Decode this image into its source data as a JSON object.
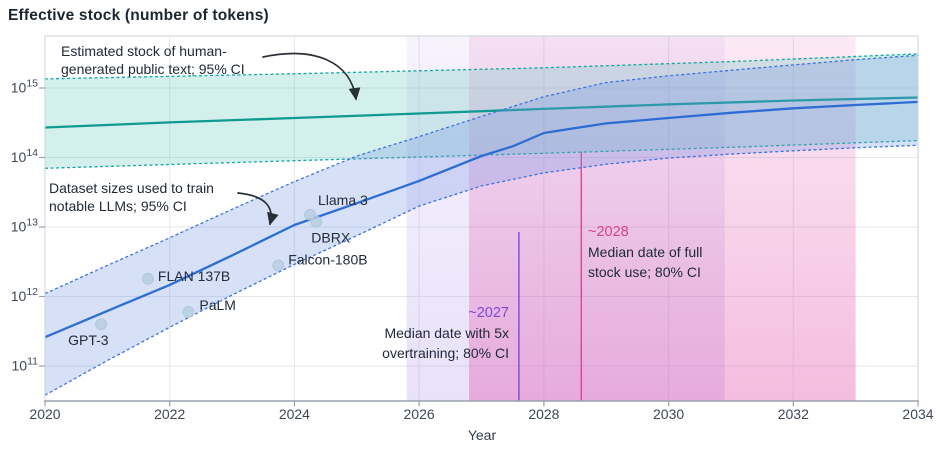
{
  "chart_data": {
    "type": "line",
    "title": "Effective stock (number of tokens)",
    "xlabel": "Year",
    "ylabel": "Effective stock (number of tokens)",
    "xlim": [
      2020,
      2034
    ],
    "ylim_log10": [
      10.5,
      15.75
    ],
    "x_ticks": [
      2020,
      2022,
      2024,
      2026,
      2028,
      2030,
      2032,
      2034
    ],
    "y_tick_exponents": [
      11,
      12,
      13,
      14,
      15
    ],
    "grid": true,
    "legend": "none (annotated inline)",
    "annotations": {
      "human_stock": "Estimated stock of human-\ngenerated public text; 95% CI",
      "dataset_sizes": "Dataset sizes used to train\nnotable LLMs; 95% CI"
    },
    "series": [
      {
        "id": "human_stock",
        "name": "Estimated stock of human-generated public text; 95% CI",
        "color": "#0f9a92",
        "dash_color": "#16a8a0",
        "fill": "rgba(88,196,186,0.26)",
        "median": {
          "x": [
            2020,
            2022,
            2024,
            2026,
            2028,
            2030,
            2032,
            2034
          ],
          "y": [
            270000000000000.0,
            320000000000000.0,
            370000000000000.0,
            430000000000000.0,
            500000000000000.0,
            580000000000000.0,
            660000000000000.0,
            730000000000000.0
          ]
        },
        "upper": {
          "x": [
            2020,
            2024,
            2028,
            2031,
            2034
          ],
          "y": [
            1350000000000000.0,
            1600000000000000.0,
            1950000000000000.0,
            2400000000000000.0,
            3100000000000000.0
          ]
        },
        "lower": {
          "x": [
            2020,
            2024,
            2028,
            2031,
            2034
          ],
          "y": [
            70000000000000.0,
            90000000000000.0,
            115000000000000.0,
            140000000000000.0,
            175000000000000.0
          ]
        }
      },
      {
        "id": "dataset_sizes",
        "name": "Dataset sizes used to train notable LLMs; 95% CI",
        "color": "#2e6ed4",
        "dash_color": "#3d74dc",
        "fill": "rgba(120,152,228,0.30)",
        "median": {
          "x": [
            2020,
            2021,
            2022,
            2023,
            2024,
            2025,
            2026,
            2027,
            2027.5,
            2028,
            2028.5,
            2029,
            2030,
            2031,
            2032,
            2033,
            2034
          ],
          "y": [
            260000000000.0,
            620000000000.0,
            1470000000000.0,
            3900000000000.0,
            10700000000000.0,
            22000000000000.0,
            46000000000000.0,
            105000000000000.0,
            145000000000000.0,
            225000000000000.0,
            265000000000000.0,
            310000000000000.0,
            370000000000000.0,
            440000000000000.0,
            510000000000000.0,
            570000000000000.0,
            630000000000000.0
          ]
        },
        "upper": {
          "x": [
            2020,
            2021,
            2022,
            2023,
            2024,
            2025,
            2026,
            2027,
            2028,
            2029,
            2030,
            2031,
            2032,
            2033,
            2034
          ],
          "y": [
            1100000000000.0,
            2800000000000.0,
            7000000000000.0,
            18000000000000.0,
            45000000000000.0,
            105000000000000.0,
            200000000000000.0,
            390000000000000.0,
            750000000000000.0,
            1200000000000000.0,
            1500000000000000.0,
            1800000000000000.0,
            2150000000000000.0,
            2550000000000000.0,
            2950000000000000.0
          ]
        },
        "lower": {
          "x": [
            2020,
            2021,
            2022,
            2023,
            2024,
            2025,
            2026,
            2027,
            2028,
            2029,
            2030,
            2031,
            2032,
            2033,
            2034
          ],
          "y": [
            38000000000.0,
            120000000000.0,
            360000000000.0,
            1050000000000.0,
            2900000000000.0,
            7500000000000.0,
            20000000000000.0,
            39000000000000.0,
            60000000000000.0,
            80000000000000.0,
            98000000000000.0,
            112000000000000.0,
            125000000000000.0,
            138000000000000.0,
            150000000000000.0
          ]
        }
      }
    ],
    "scatter": [
      {
        "label": "GPT-3",
        "year": 2020.9,
        "tokens": 400000000000.0,
        "dx": -33,
        "dy": 21
      },
      {
        "label": "FLAN 137B",
        "year": 2021.65,
        "tokens": 1800000000000.0,
        "dx": 10,
        "dy": 2
      },
      {
        "label": "PaLM",
        "year": 2022.3,
        "tokens": 600000000000.0,
        "dx": 11,
        "dy": -2
      },
      {
        "label": "Falcon-180B",
        "year": 2023.74,
        "tokens": 2800000000000.0,
        "dx": 10,
        "dy": -1
      },
      {
        "label": "DBRX",
        "year": 2024.35,
        "tokens": 12000000000000.0,
        "dx": -5,
        "dy": 21
      },
      {
        "label": "Llama 3",
        "year": 2024.25,
        "tokens": 15000000000000.0,
        "dx": 8,
        "dy": -10
      }
    ],
    "events": [
      {
        "label": "~2027",
        "description": "Median date with 5x\novertraining; 80% CI",
        "median_year": 2027.6,
        "ci_start": 2025.8,
        "ci_end": 2030.9,
        "color": "#7b48d9"
      },
      {
        "label": "~2028",
        "description": "Median date of full\nstock use; 80% CI",
        "median_year": 2028.6,
        "ci_start": 2026.8,
        "ci_end": 2033.0,
        "color": "#d6418f"
      }
    ]
  }
}
